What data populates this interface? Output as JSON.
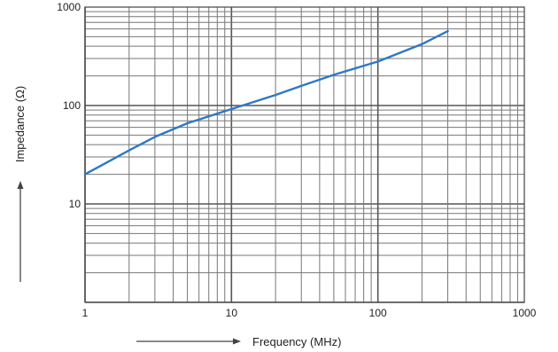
{
  "chart_data": {
    "type": "line",
    "title": "",
    "xlabel": "Frequency (MHz)",
    "ylabel": "Impedance (Ω)",
    "xscale": "log",
    "yscale": "log",
    "xlim": [
      1,
      1000
    ],
    "ylim": [
      1,
      1000
    ],
    "grid": true,
    "x_tick_labels": [
      "1",
      "10",
      "100",
      "1000"
    ],
    "y_tick_labels": [
      "10",
      "100",
      "1000"
    ],
    "series": [
      {
        "color": "#2f78c4",
        "x": [
          1,
          2,
          3,
          5,
          10,
          20,
          30,
          50,
          100,
          200,
          300
        ],
        "y": [
          20,
          35,
          48,
          66,
          92,
          128,
          158,
          205,
          280,
          420,
          570
        ]
      }
    ]
  }
}
